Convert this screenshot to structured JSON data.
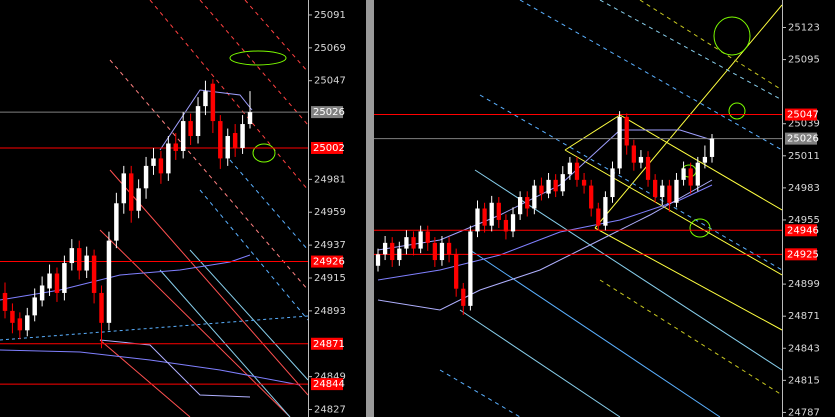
{
  "chart_data": [
    {
      "type": "candlestick",
      "ylim": [
        24822,
        25101
      ],
      "yticks": [
        25091,
        25069,
        25047,
        24981,
        24959,
        24937,
        24915,
        24893,
        24849,
        24827
      ],
      "current_price": 25026,
      "price_levels": [
        25002,
        24926,
        24871,
        24844
      ],
      "up_color": "#ffffff",
      "down_color": "#ff0000",
      "level_color": "#ff0000",
      "current_color": "#808080",
      "open": [
        24905,
        24893,
        24888,
        24880,
        24890,
        24900,
        24908,
        24918,
        24905,
        24925,
        24935,
        24920,
        24930,
        24905,
        24885,
        24940,
        24965,
        24985,
        24960,
        24975,
        24990,
        24995,
        24985,
        25005,
        25000,
        25020,
        25010,
        25030,
        25045,
        25020,
        24995,
        25012,
        25002,
        25018
      ],
      "high": [
        24912,
        24898,
        24892,
        24895,
        24908,
        24916,
        24924,
        24922,
        24930,
        24941,
        24940,
        24936,
        24934,
        24910,
        24946,
        24972,
        24990,
        24990,
        24981,
        24996,
        25002,
        25000,
        25010,
        25012,
        25026,
        25025,
        25036,
        25047,
        25048,
        25024,
        25015,
        25018,
        25024,
        25040
      ],
      "low": [
        24888,
        24878,
        24874,
        24876,
        24886,
        24896,
        24903,
        24899,
        24900,
        24920,
        24914,
        24915,
        24898,
        24868,
        24880,
        24935,
        24958,
        24952,
        24955,
        24968,
        24984,
        24978,
        24980,
        24994,
        24995,
        25004,
        25005,
        25024,
        25012,
        24988,
        24990,
        24996,
        24998,
        25015
      ],
      "close": [
        24893,
        24885,
        24880,
        24890,
        24902,
        24910,
        24918,
        24905,
        24925,
        24935,
        24920,
        24930,
        24905,
        24885,
        24940,
        24965,
        24985,
        24960,
        24975,
        24990,
        24995,
        24985,
        25005,
        25000,
        25020,
        25010,
        25030,
        25040,
        25020,
        24995,
        25010,
        25002,
        25018,
        25026
      ]
    },
    {
      "type": "candlestick",
      "ylim": [
        24783,
        25147
      ],
      "yticks": [
        25123,
        25095,
        25039,
        25011,
        24983,
        24955,
        24899,
        24871,
        24843,
        24815,
        24787
      ],
      "current_price": 25026,
      "price_levels": [
        25047,
        24946,
        24925
      ],
      "up_color": "#ffffff",
      "down_color": "#ff0000",
      "level_color": "#ff0000",
      "current_color": "#808080",
      "open": [
        24915,
        24925,
        24935,
        24920,
        24930,
        24940,
        24930,
        24945,
        24935,
        24920,
        24935,
        24925,
        24895,
        24880,
        24945,
        24965,
        24950,
        24970,
        24955,
        24945,
        24960,
        24975,
        24965,
        24985,
        24978,
        24990,
        24980,
        24995,
        25005,
        24990,
        24985,
        24965,
        24950,
        24975,
        25000,
        25045,
        25020,
        25005,
        25010,
        24990,
        24975,
        24985,
        24970,
        24990,
        25000,
        24985,
        25005,
        25010
      ],
      "high": [
        24930,
        24941,
        24940,
        24936,
        24946,
        24945,
        24950,
        24950,
        24940,
        24941,
        24940,
        24930,
        24900,
        24950,
        24972,
        24970,
        24976,
        24975,
        24960,
        24966,
        24980,
        24980,
        24990,
        24992,
        24996,
        24995,
        25002,
        25010,
        25010,
        24996,
        24990,
        24970,
        24980,
        25006,
        25050,
        25048,
        25025,
        25016,
        25015,
        24995,
        24990,
        24990,
        24996,
        25006,
        25005,
        25010,
        25020,
        25030
      ],
      "low": [
        24910,
        24920,
        24914,
        24915,
        24925,
        24924,
        24926,
        24928,
        24914,
        24915,
        24918,
        24888,
        24872,
        24876,
        24940,
        24944,
        24945,
        24948,
        24938,
        24940,
        24955,
        24958,
        24960,
        24972,
        24974,
        24975,
        24976,
        24990,
        24984,
        24978,
        24958,
        24946,
        24946,
        24970,
        24995,
        25012,
        24998,
        25000,
        24984,
        24970,
        24968,
        24962,
        24966,
        24985,
        24978,
        24980,
        25000,
        25005
      ],
      "close": [
        24925,
        24935,
        24920,
        24930,
        24940,
        24930,
        24945,
        24935,
        24920,
        24935,
        24925,
        24895,
        24880,
        24945,
        24965,
        24950,
        24970,
        24955,
        24945,
        24960,
        24975,
        24965,
        24985,
        24978,
        24990,
        24980,
        24995,
        25005,
        24990,
        24985,
        24965,
        24950,
        24975,
        25000,
        25045,
        25020,
        25005,
        25010,
        24990,
        24975,
        24985,
        24970,
        24990,
        25000,
        24985,
        25005,
        25010,
        25026
      ]
    }
  ]
}
